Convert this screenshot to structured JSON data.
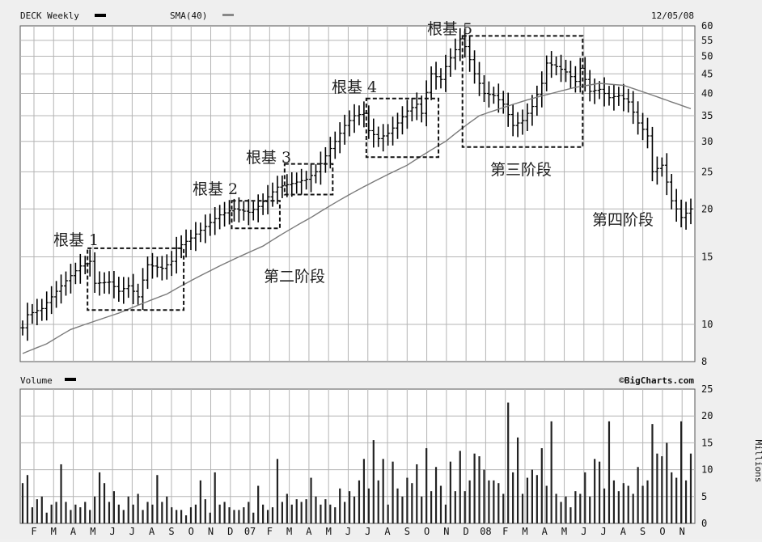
{
  "header": {
    "ticker_label": "DECK Weekly",
    "sma_label": "SMA(40)",
    "date": "12/05/08",
    "volume_label": "Volume",
    "source": "©BigCharts.com",
    "volume_unit": "Millions"
  },
  "colors": {
    "background": "#efefef",
    "plot_bg": "#ffffff",
    "grid": "#b0b0b0",
    "bars": "#000000",
    "sma": "#777777",
    "box": "#000000"
  },
  "annotations": {
    "base1": "根基 1",
    "base2": "根基 2",
    "base3": "根基 3",
    "base4": "根基 4",
    "base5": "根基 5",
    "stage2": "第二阶段",
    "stage3": "第三阶段",
    "stage4": "第四阶段"
  },
  "chart_data": [
    {
      "type": "bar",
      "subtype": "ohlc-weekly-price",
      "ticker": "DECK",
      "y_scale": "log",
      "ylim": [
        8,
        60
      ],
      "y_ticks": [
        8,
        10,
        15,
        20,
        25,
        30,
        35,
        40,
        45,
        50,
        55,
        60
      ],
      "grid": true,
      "x_ticks": [
        "F",
        "M",
        "A",
        "M",
        "J",
        "J",
        "A",
        "S",
        "O",
        "N",
        "D",
        "07",
        "F",
        "M",
        "A",
        "M",
        "J",
        "J",
        "A",
        "S",
        "O",
        "N",
        "D",
        "08",
        "F",
        "M",
        "A",
        "M",
        "J",
        "J",
        "A",
        "S",
        "O",
        "N"
      ],
      "price_anchors": [
        [
          0,
          9.8
        ],
        [
          1,
          10.6
        ],
        [
          4,
          11.0
        ],
        [
          6,
          11.8
        ],
        [
          9,
          13.0
        ],
        [
          12,
          14.2
        ],
        [
          14,
          14.6
        ],
        [
          15,
          12.8
        ],
        [
          18,
          12.9
        ],
        [
          20,
          12.2
        ],
        [
          22,
          12.6
        ],
        [
          24,
          11.8
        ],
        [
          26,
          14.3
        ],
        [
          29,
          14.0
        ],
        [
          31,
          14.6
        ],
        [
          32,
          15.8
        ],
        [
          35,
          16.8
        ],
        [
          38,
          18.0
        ],
        [
          41,
          19.3
        ],
        [
          44,
          20.0
        ],
        [
          47,
          19.6
        ],
        [
          49,
          20.3
        ],
        [
          51,
          21.5
        ],
        [
          53,
          22.8
        ],
        [
          56,
          23.3
        ],
        [
          59,
          23.9
        ],
        [
          61,
          25.0
        ],
        [
          63,
          27.5
        ],
        [
          65,
          30.0
        ],
        [
          67,
          33.0
        ],
        [
          69,
          35.0
        ],
        [
          71,
          35.5
        ],
        [
          72,
          32.0
        ],
        [
          74,
          30.5
        ],
        [
          76,
          31.5
        ],
        [
          78,
          33.5
        ],
        [
          80,
          36.0
        ],
        [
          82,
          37.5
        ],
        [
          83,
          35.5
        ],
        [
          85,
          45.0
        ],
        [
          87,
          43.5
        ],
        [
          88,
          47.0
        ],
        [
          90,
          52.0
        ],
        [
          91,
          55.5
        ],
        [
          92,
          53.0
        ],
        [
          94,
          45.0
        ],
        [
          96,
          40.0
        ],
        [
          98,
          39.5
        ],
        [
          100,
          37.5
        ],
        [
          102,
          33.0
        ],
        [
          104,
          34.0
        ],
        [
          106,
          37.0
        ],
        [
          108,
          42.5
        ],
        [
          109,
          48.0
        ],
        [
          111,
          47.0
        ],
        [
          113,
          45.5
        ],
        [
          115,
          43.0
        ],
        [
          116,
          46.5
        ],
        [
          118,
          40.5
        ],
        [
          120,
          41.0
        ],
        [
          122,
          39.0
        ],
        [
          124,
          39.5
        ],
        [
          126,
          38.0
        ],
        [
          128,
          33.5
        ],
        [
          130,
          31.0
        ],
        [
          131,
          25.0
        ],
        [
          133,
          26.0
        ],
        [
          135,
          21.0
        ],
        [
          137,
          19.0
        ],
        [
          139,
          20.0
        ]
      ],
      "series": [
        {
          "name": "DECK Weekly",
          "kind": "ohlc"
        },
        {
          "name": "SMA(40)",
          "kind": "line",
          "anchors": [
            [
              0,
              8.4
            ],
            [
              5,
              8.9
            ],
            [
              10,
              9.7
            ],
            [
              20,
              10.7
            ],
            [
              30,
              12.0
            ],
            [
              40,
              14.0
            ],
            [
              50,
              16.0
            ],
            [
              60,
              19.0
            ],
            [
              70,
              22.5
            ],
            [
              80,
              26.0
            ],
            [
              88,
              30.0
            ],
            [
              95,
              35.0
            ],
            [
              105,
              38.5
            ],
            [
              115,
              41.5
            ],
            [
              120,
              42.5
            ],
            [
              125,
              42.0
            ],
            [
              130,
              40.0
            ],
            [
              135,
              38.0
            ],
            [
              139,
              36.5
            ]
          ]
        }
      ],
      "boxes": [
        {
          "label": "根基 1",
          "x": [
            14,
            33
          ],
          "y": [
            10.9,
            15.8
          ]
        },
        {
          "label": "根基 2",
          "x": [
            44,
            53
          ],
          "y": [
            17.8,
            21.0
          ]
        },
        {
          "label": "根基 3",
          "x": [
            55,
            64
          ],
          "y": [
            21.8,
            26.2
          ]
        },
        {
          "label": "根基 4",
          "x": [
            72,
            86
          ],
          "y": [
            27.3,
            38.8
          ]
        },
        {
          "label": "根基 5",
          "x": [
            92,
            116
          ],
          "y": [
            29.0,
            56.5
          ]
        }
      ]
    },
    {
      "type": "bar",
      "subtype": "weekly-volume",
      "ylabel": "Millions",
      "ylim": [
        0,
        25
      ],
      "y_ticks": [
        0,
        5,
        10,
        15,
        20,
        25
      ],
      "grid": true,
      "values": [
        7.5,
        9.0,
        3.0,
        4.5,
        5.0,
        2.0,
        3.5,
        4.0,
        11.0,
        4.0,
        2.5,
        3.5,
        3.0,
        4.0,
        2.5,
        5.0,
        9.5,
        7.5,
        4.0,
        6.0,
        3.5,
        2.5,
        5.0,
        3.5,
        5.5,
        2.5,
        4.0,
        3.5,
        9.0,
        4.0,
        5.0,
        3.0,
        2.5,
        2.5,
        1.5,
        3.0,
        3.5,
        8.0,
        4.5,
        2.0,
        9.5,
        3.5,
        4.0,
        3.0,
        2.5,
        2.5,
        3.0,
        4.0,
        2.0,
        7.0,
        3.5,
        2.5,
        3.0,
        12.0,
        4.0,
        5.5,
        3.5,
        4.5,
        4.0,
        4.5,
        8.5,
        5.0,
        3.5,
        4.5,
        3.5,
        3.0,
        6.5,
        4.0,
        6.0,
        5.0,
        8.0,
        12.0,
        6.5,
        15.5,
        8.0,
        12.0,
        3.5,
        11.5,
        6.5,
        5.0,
        8.5,
        7.5,
        11.0,
        5.0,
        14.0,
        6.0,
        10.5,
        7.0,
        3.5,
        11.5,
        6.0,
        13.5,
        6.0,
        8.0,
        13.0,
        12.5,
        10.0,
        8.0,
        8.0,
        7.5,
        5.5,
        22.5,
        9.5,
        16.0,
        5.5,
        8.5,
        10.0,
        9.0,
        14.0,
        7.0,
        19.0,
        5.5,
        4.0,
        5.0,
        3.0,
        6.0,
        5.5,
        9.5,
        5.0,
        12.0,
        11.5,
        6.5,
        19.0,
        8.0,
        6.0,
        7.5,
        7.0,
        5.5,
        10.5,
        7.0,
        8.0,
        18.5,
        13.0,
        12.5,
        15.0,
        9.5,
        8.5,
        19.0,
        8.0,
        13.0
      ]
    }
  ]
}
